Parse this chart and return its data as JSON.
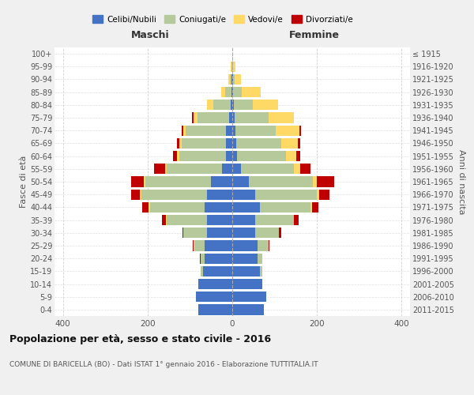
{
  "age_groups": [
    "0-4",
    "5-9",
    "10-14",
    "15-19",
    "20-24",
    "25-29",
    "30-34",
    "35-39",
    "40-44",
    "45-49",
    "50-54",
    "55-59",
    "60-64",
    "65-69",
    "70-74",
    "75-79",
    "80-84",
    "85-89",
    "90-94",
    "95-99",
    "100+"
  ],
  "birth_years": [
    "2011-2015",
    "2006-2010",
    "2001-2005",
    "1996-2000",
    "1991-1995",
    "1986-1990",
    "1981-1985",
    "1976-1980",
    "1971-1975",
    "1966-1970",
    "1961-1965",
    "1956-1960",
    "1951-1955",
    "1946-1950",
    "1941-1945",
    "1936-1940",
    "1931-1935",
    "1926-1930",
    "1921-1925",
    "1916-1920",
    "≤ 1915"
  ],
  "males": {
    "celibi": [
      80,
      85,
      80,
      70,
      65,
      65,
      60,
      60,
      65,
      60,
      50,
      25,
      15,
      15,
      15,
      8,
      4,
      2,
      1,
      0,
      0
    ],
    "coniugati": [
      0,
      0,
      0,
      5,
      10,
      25,
      55,
      95,
      130,
      155,
      155,
      130,
      110,
      105,
      95,
      75,
      40,
      15,
      4,
      2,
      0
    ],
    "vedovi": [
      0,
      0,
      0,
      0,
      0,
      1,
      1,
      1,
      2,
      3,
      4,
      4,
      5,
      5,
      5,
      8,
      15,
      10,
      5,
      1,
      0
    ],
    "divorziati": [
      0,
      0,
      0,
      0,
      1,
      2,
      2,
      10,
      15,
      20,
      30,
      25,
      10,
      5,
      5,
      5,
      0,
      0,
      0,
      0,
      0
    ]
  },
  "females": {
    "nubili": [
      75,
      80,
      70,
      65,
      60,
      60,
      55,
      55,
      65,
      55,
      40,
      20,
      12,
      10,
      8,
      5,
      4,
      2,
      1,
      0,
      0
    ],
    "coniugate": [
      0,
      0,
      0,
      5,
      10,
      25,
      55,
      90,
      120,
      145,
      150,
      125,
      115,
      105,
      95,
      80,
      45,
      20,
      5,
      2,
      0
    ],
    "vedove": [
      0,
      0,
      0,
      0,
      0,
      1,
      1,
      1,
      3,
      5,
      10,
      15,
      25,
      40,
      55,
      60,
      60,
      45,
      15,
      5,
      0
    ],
    "divorziate": [
      0,
      0,
      0,
      0,
      1,
      2,
      5,
      10,
      15,
      25,
      40,
      25,
      8,
      5,
      5,
      0,
      0,
      0,
      0,
      0,
      0
    ]
  },
  "colors": {
    "celibi_nubili": "#4472c4",
    "coniugati": "#b5c99a",
    "vedovi": "#ffd966",
    "divorziati": "#c00000"
  },
  "xlim": 420,
  "title": "Popolazione per età, sesso e stato civile - 2016",
  "subtitle": "COMUNE DI BARICELLA (BO) - Dati ISTAT 1° gennaio 2016 - Elaborazione TUTTITALIA.IT",
  "ylabel_left": "Fasce di età",
  "ylabel_right": "Anni di nascita",
  "xlabel_maschi": "Maschi",
  "xlabel_femmine": "Femmine",
  "bg_color": "#f0f0f0",
  "plot_bg": "#ffffff",
  "grid_color": "#cccccc"
}
